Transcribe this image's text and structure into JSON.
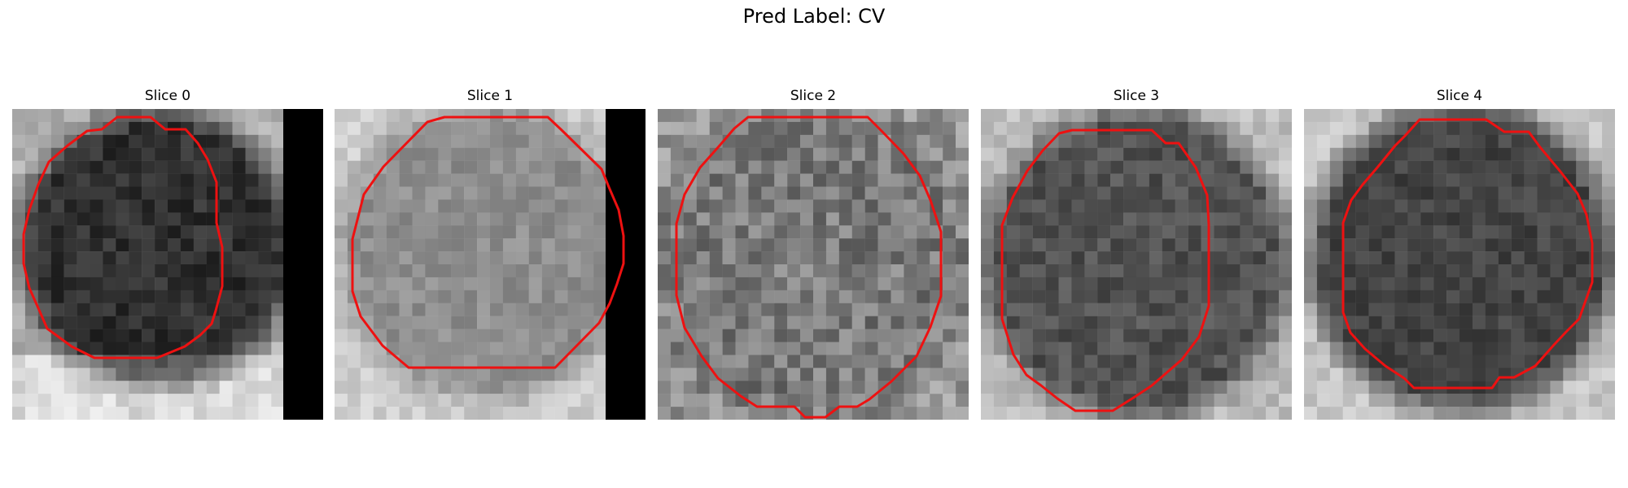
{
  "figure": {
    "title": "Pred Label: CV",
    "contour_color": "#ee1111",
    "panels": [
      {
        "title": "Slice 0",
        "image_name": "slice-0-grayscale-patch",
        "brightness": "dark interior, bright lower border",
        "black_region": "right edge strip",
        "contour_name": "slice-0-segmentation-contour"
      },
      {
        "title": "Slice 1",
        "image_name": "slice-1-grayscale-patch",
        "brightness": "medium gray interior, light surroundings",
        "black_region": "right edge strip",
        "contour_name": "slice-1-segmentation-contour"
      },
      {
        "title": "Slice 2",
        "image_name": "slice-2-grayscale-patch",
        "brightness": "noisy mid-gray interior",
        "black_region": "none",
        "contour_name": "slice-2-segmentation-contour"
      },
      {
        "title": "Slice 3",
        "image_name": "slice-3-grayscale-patch",
        "brightness": "darker interior, light surroundings",
        "black_region": "none",
        "contour_name": "slice-3-segmentation-contour"
      },
      {
        "title": "Slice 4",
        "image_name": "slice-4-grayscale-patch",
        "brightness": "dark center, light surroundings",
        "black_region": "none",
        "contour_name": "slice-4-segmentation-contour"
      }
    ]
  }
}
